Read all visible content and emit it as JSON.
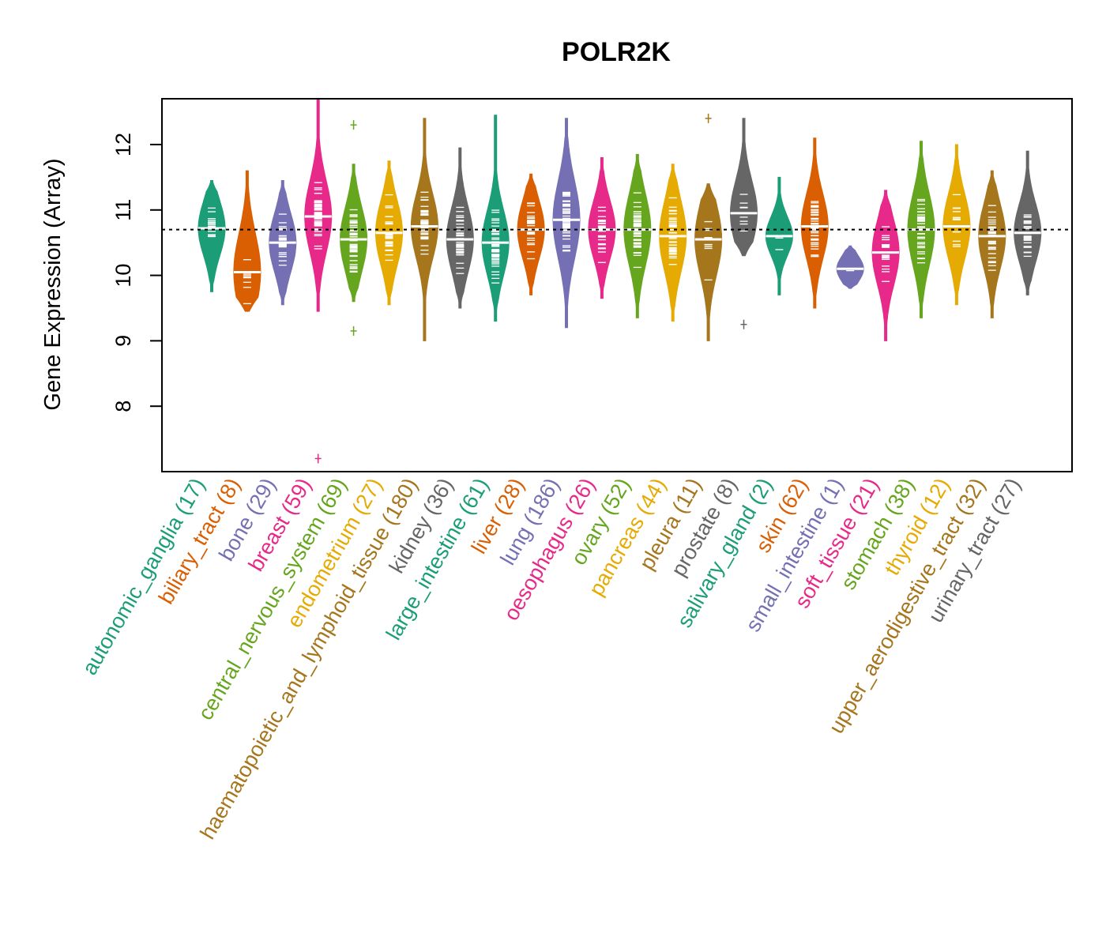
{
  "chart_data": {
    "type": "violin-beeswarm",
    "title": "POLR2K",
    "ylabel": "Gene Expression (Array)",
    "xlabel": "",
    "ylim": [
      7,
      12.7
    ],
    "yticks": [
      8,
      9,
      10,
      11,
      12
    ],
    "reference_line": 10.7,
    "categories": [
      {
        "name": "autonomic_ganglia",
        "n": 17,
        "label": "autonomic_ganglia (17)",
        "color": "#1B9E77",
        "median": 10.72,
        "min": 9.75,
        "max": 11.45,
        "spread": 0.42,
        "outliers": []
      },
      {
        "name": "biliary_tract",
        "n": 8,
        "label": "biliary_tract (8)",
        "color": "#D95F02",
        "median": 10.05,
        "min": 9.45,
        "max": 11.6,
        "spread": 0.6,
        "outliers": []
      },
      {
        "name": "bone",
        "n": 29,
        "label": "bone (29)",
        "color": "#7570B3",
        "median": 10.5,
        "min": 9.55,
        "max": 11.45,
        "spread": 0.45,
        "outliers": []
      },
      {
        "name": "breast",
        "n": 59,
        "label": "breast (59)",
        "color": "#E7298A",
        "median": 10.9,
        "min": 9.45,
        "max": 12.7,
        "spread": 0.55,
        "outliers": [
          7.2
        ]
      },
      {
        "name": "central_nervous_system",
        "n": 69,
        "label": "central_nervous_system (69)",
        "color": "#66A61E",
        "median": 10.55,
        "min": 9.6,
        "max": 11.7,
        "spread": 0.5,
        "outliers": [
          9.15,
          12.3
        ]
      },
      {
        "name": "endometrium",
        "n": 27,
        "label": "endometrium (27)",
        "color": "#E6AB02",
        "median": 10.65,
        "min": 9.55,
        "max": 11.75,
        "spread": 0.5,
        "outliers": []
      },
      {
        "name": "haematopoietic_and_lymphoid_tissue",
        "n": 180,
        "label": "haematopoietic_and_lymphoid_tissue (180)",
        "color": "#A6761D",
        "median": 10.75,
        "min": 9.0,
        "max": 12.4,
        "spread": 0.5,
        "outliers": []
      },
      {
        "name": "kidney",
        "n": 36,
        "label": "kidney (36)",
        "color": "#666666",
        "median": 10.55,
        "min": 9.5,
        "max": 11.95,
        "spread": 0.5,
        "outliers": []
      },
      {
        "name": "large_intestine",
        "n": 61,
        "label": "large_intestine (61)",
        "color": "#1B9E77",
        "median": 10.5,
        "min": 9.3,
        "max": 12.45,
        "spread": 0.5,
        "outliers": []
      },
      {
        "name": "liver",
        "n": 28,
        "label": "liver (28)",
        "color": "#D95F02",
        "median": 10.7,
        "min": 9.7,
        "max": 11.55,
        "spread": 0.45,
        "outliers": []
      },
      {
        "name": "lung",
        "n": 186,
        "label": "lung (186)",
        "color": "#7570B3",
        "median": 10.85,
        "min": 9.2,
        "max": 12.4,
        "spread": 0.6,
        "outliers": []
      },
      {
        "name": "oesophagus",
        "n": 26,
        "label": "oesophagus (26)",
        "color": "#E7298A",
        "median": 10.7,
        "min": 9.65,
        "max": 11.8,
        "spread": 0.45,
        "outliers": []
      },
      {
        "name": "ovary",
        "n": 52,
        "label": "ovary (52)",
        "color": "#66A61E",
        "median": 10.7,
        "min": 9.35,
        "max": 11.85,
        "spread": 0.55,
        "outliers": []
      },
      {
        "name": "pancreas",
        "n": 44,
        "label": "pancreas (44)",
        "color": "#E6AB02",
        "median": 10.6,
        "min": 9.3,
        "max": 11.7,
        "spread": 0.55,
        "outliers": []
      },
      {
        "name": "pleura",
        "n": 11,
        "label": "pleura (11)",
        "color": "#A6761D",
        "median": 10.55,
        "min": 9.0,
        "max": 11.4,
        "spread": 0.55,
        "outliers": [
          12.4
        ]
      },
      {
        "name": "prostate",
        "n": 8,
        "label": "prostate (8)",
        "color": "#666666",
        "median": 10.95,
        "min": 10.3,
        "max": 12.4,
        "spread": 0.5,
        "outliers": [
          9.25
        ]
      },
      {
        "name": "salivary_gland",
        "n": 2,
        "label": "salivary_gland (2)",
        "color": "#1B9E77",
        "median": 10.6,
        "min": 9.7,
        "max": 11.5,
        "spread": 0.3,
        "outliers": []
      },
      {
        "name": "skin",
        "n": 62,
        "label": "skin (62)",
        "color": "#D95F02",
        "median": 10.75,
        "min": 9.5,
        "max": 12.1,
        "spread": 0.5,
        "outliers": []
      },
      {
        "name": "small_intestine",
        "n": 1,
        "label": "small_intestine (1)",
        "color": "#7570B3",
        "median": 10.1,
        "min": 9.8,
        "max": 10.45,
        "spread": 0.2,
        "outliers": []
      },
      {
        "name": "soft_tissue",
        "n": 21,
        "label": "soft_tissue (21)",
        "color": "#E7298A",
        "median": 10.35,
        "min": 9.0,
        "max": 11.3,
        "spread": 0.5,
        "outliers": []
      },
      {
        "name": "stomach",
        "n": 38,
        "label": "stomach (38)",
        "color": "#66A61E",
        "median": 10.7,
        "min": 9.35,
        "max": 12.05,
        "spread": 0.55,
        "outliers": []
      },
      {
        "name": "thyroid",
        "n": 12,
        "label": "thyroid (12)",
        "color": "#E6AB02",
        "median": 10.75,
        "min": 9.55,
        "max": 12.0,
        "spread": 0.5,
        "outliers": []
      },
      {
        "name": "upper_aerodigestive_tract",
        "n": 32,
        "label": "upper_aerodigestive_tract (32)",
        "color": "#A6761D",
        "median": 10.6,
        "min": 9.35,
        "max": 11.6,
        "spread": 0.5,
        "outliers": []
      },
      {
        "name": "urinary_tract",
        "n": 27,
        "label": "urinary_tract (27)",
        "color": "#666666",
        "median": 10.65,
        "min": 9.7,
        "max": 11.9,
        "spread": 0.45,
        "outliers": []
      }
    ]
  }
}
